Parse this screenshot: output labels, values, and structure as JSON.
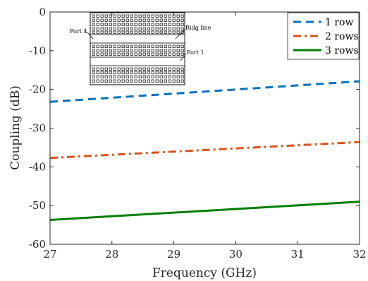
{
  "chart_data": {
    "type": "line",
    "xlabel": "Frequency (GHz)",
    "ylabel": "Coupling (dB)",
    "xlim": [
      27,
      32
    ],
    "ylim": [
      -60,
      0
    ],
    "x_ticks": [
      27,
      28,
      29,
      30,
      31,
      32
    ],
    "y_ticks": [
      0,
      -10,
      -20,
      -30,
      -40,
      -50,
      -60
    ],
    "grid": false,
    "legend_position": "top-right",
    "series": [
      {
        "name": "1 row",
        "x": [
          27,
          32
        ],
        "y": [
          -23.2,
          -17.9
        ],
        "color": "#0072BD",
        "style": "dashed"
      },
      {
        "name": "2 rows",
        "x": [
          27,
          32
        ],
        "y": [
          -37.7,
          -33.6
        ],
        "color": "#D95319",
        "style": "dash-dot"
      },
      {
        "name": "3 rows",
        "x": [
          27,
          32
        ],
        "y": [
          -53.7,
          -49.0
        ],
        "color": "#007F00",
        "style": "solid"
      }
    ],
    "inset": {
      "labels": {
        "port4": "Port 4",
        "ridge": "Ridg line",
        "port1": "Port 1"
      }
    }
  }
}
